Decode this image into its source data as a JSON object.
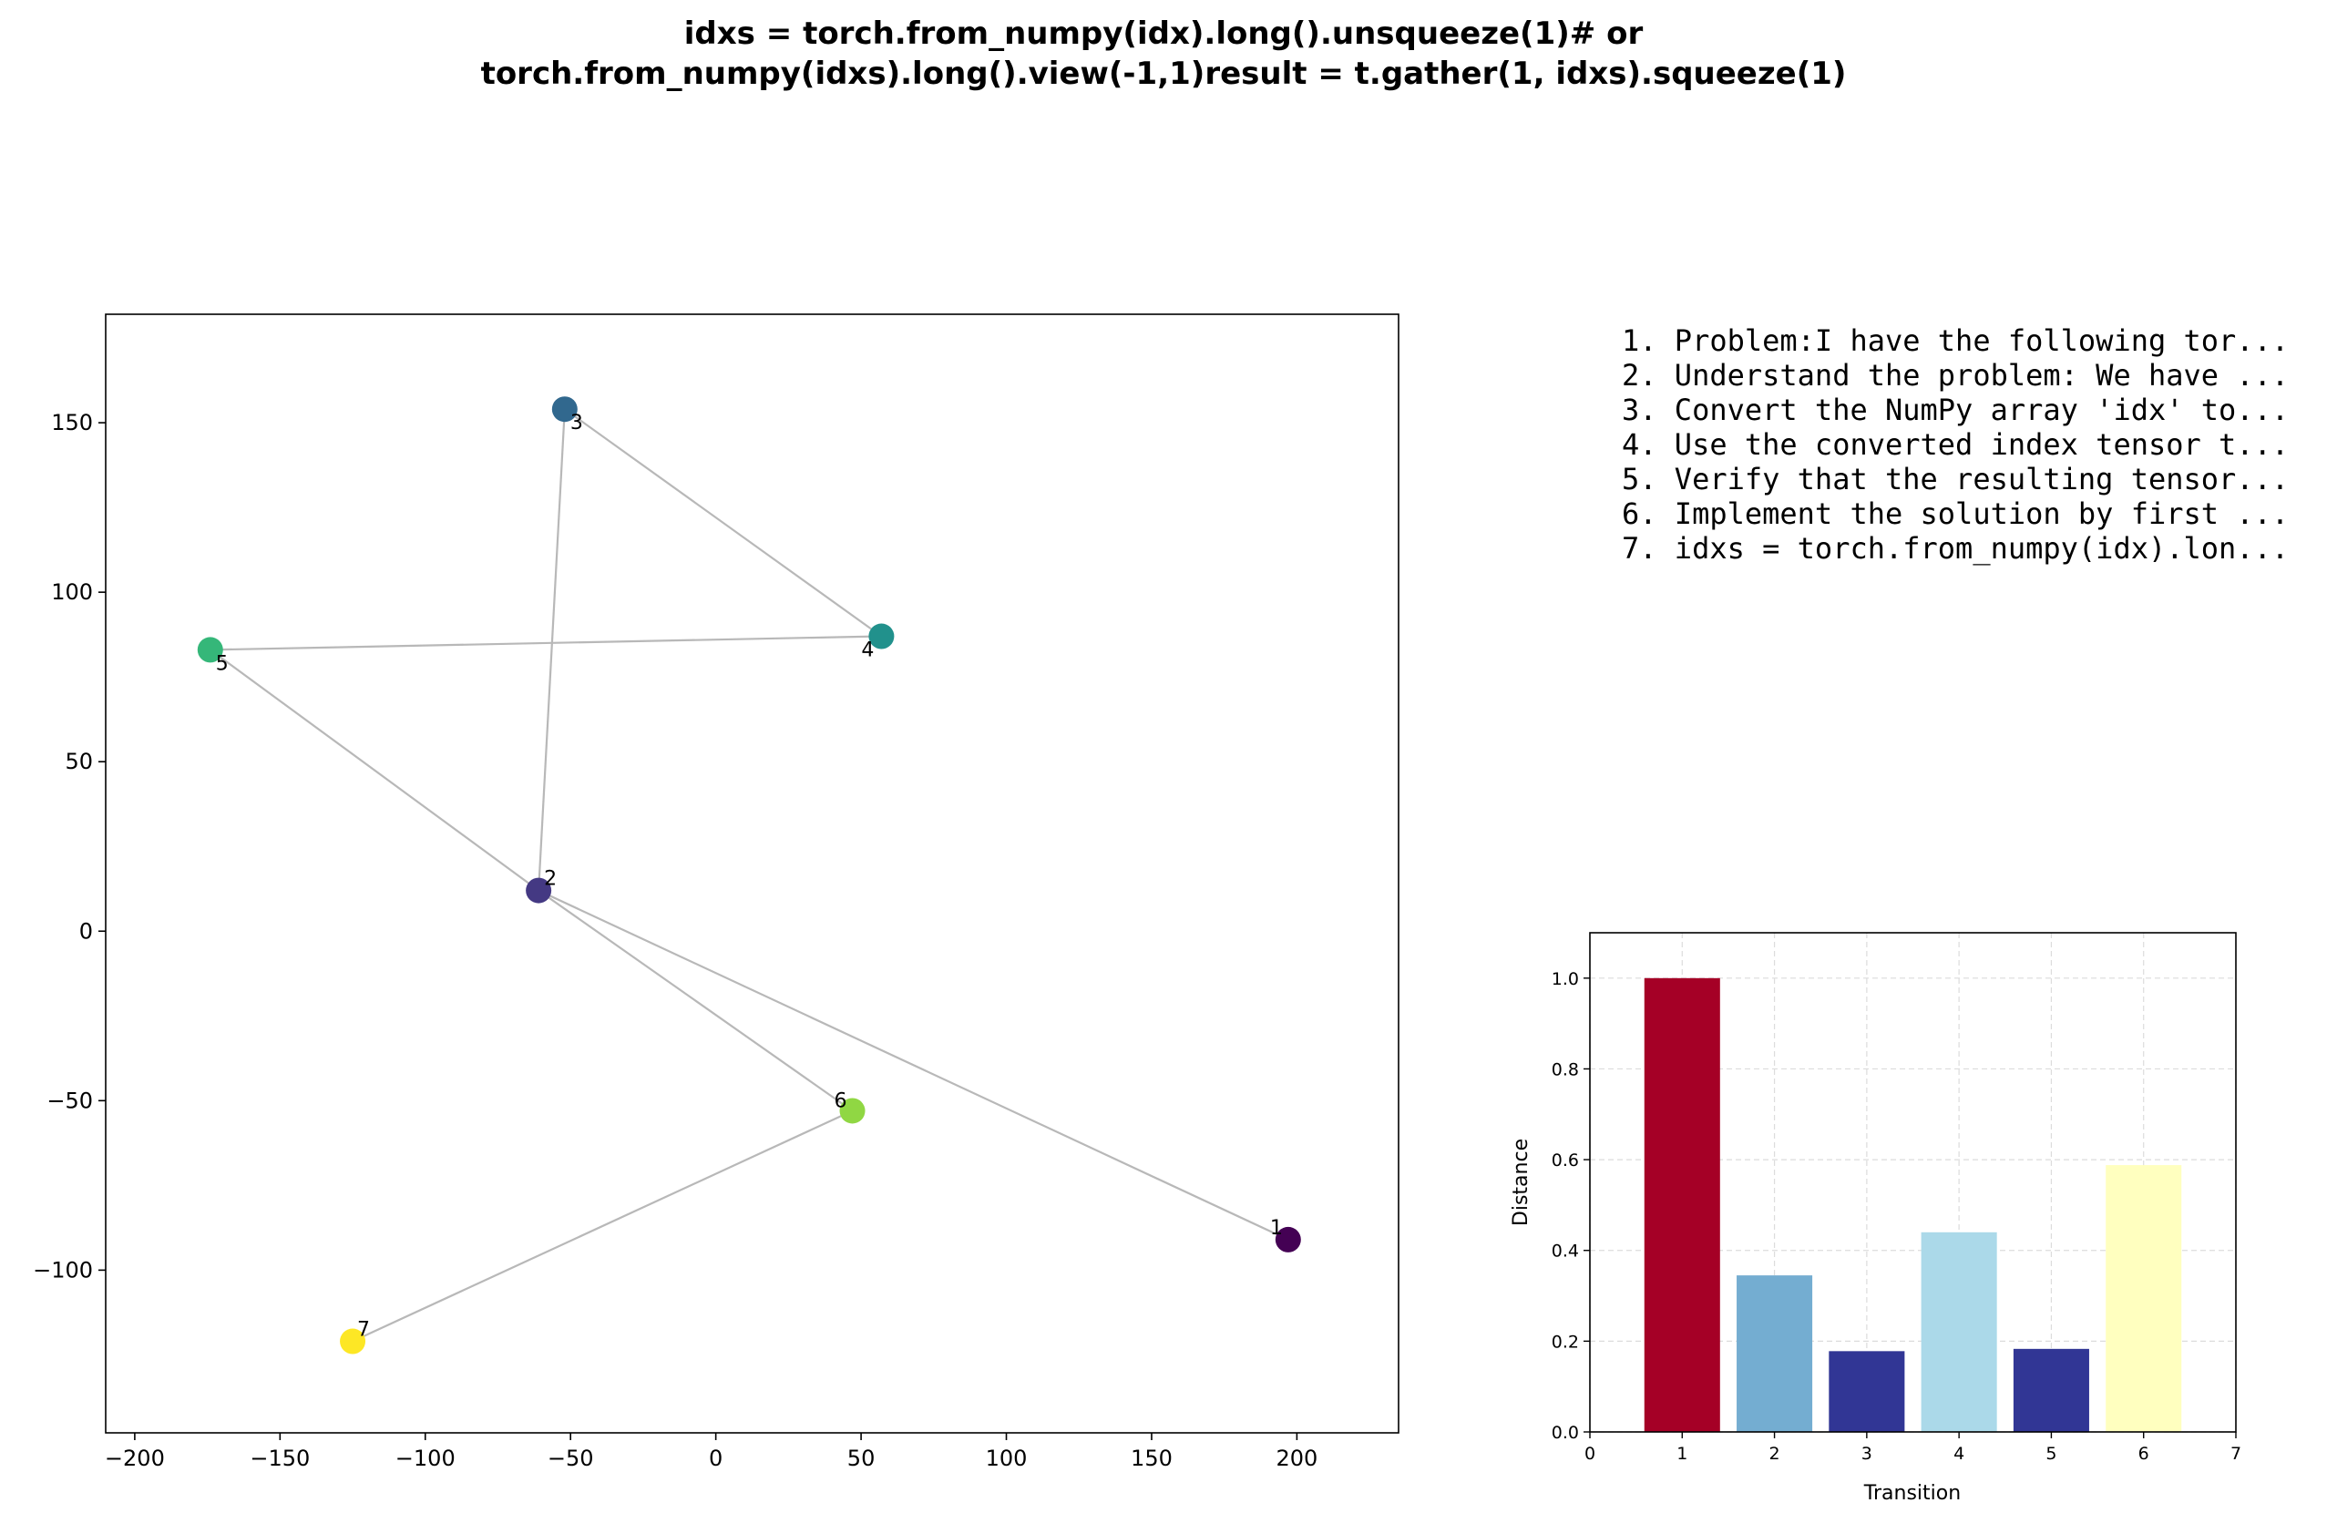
{
  "figure": {
    "title_lines": [
      "idxs = torch.from_numpy(idx).long().unsqueeze(1)# or",
      "torch.from_numpy(idxs).long().view(-1,1)result = t.gather(1, idxs).squeeze(1)"
    ],
    "steps": [
      "1. Problem:I have the following tor...",
      "2. Understand the problem: We have ...",
      "3. Convert the NumPy array 'idx' to...",
      "4. Use the converted index tensor t...",
      "5. Verify that the resulting tensor...",
      "6. Implement the solution by first ...",
      "7. idxs = torch.from_numpy(idx).lon..."
    ]
  },
  "chart_data": [
    {
      "type": "scatter",
      "title": "",
      "xlabel": "",
      "ylabel": "",
      "xlim": [
        -210,
        235
      ],
      "ylim": [
        -148,
        182
      ],
      "xticks": [
        -200,
        -150,
        -100,
        -50,
        0,
        50,
        100,
        150,
        200
      ],
      "yticks": [
        -100,
        -50,
        0,
        50,
        100,
        150
      ],
      "xtick_labels": [
        "−200",
        "−150",
        "−100",
        "−50",
        "0",
        "50",
        "100",
        "150",
        "200"
      ],
      "ytick_labels": [
        "−100",
        "−50",
        "0",
        "50",
        "100",
        "150"
      ],
      "colormap": "viridis",
      "line_color": "#b8b8b8",
      "path_order": [
        1,
        2,
        3,
        4,
        5,
        2,
        6,
        7
      ],
      "points": [
        {
          "label": "1",
          "x": 197,
          "y": -91,
          "color": "#440154"
        },
        {
          "label": "2",
          "x": -61,
          "y": 12,
          "color": "#443983"
        },
        {
          "label": "3",
          "x": -52,
          "y": 154,
          "color": "#31688e"
        },
        {
          "label": "4",
          "x": 57,
          "y": 87,
          "color": "#21918c"
        },
        {
          "label": "5",
          "x": -174,
          "y": 83,
          "color": "#35b779"
        },
        {
          "label": "6",
          "x": 47,
          "y": -53,
          "color": "#90d743"
        },
        {
          "label": "7",
          "x": -125,
          "y": -121,
          "color": "#fde725"
        }
      ]
    },
    {
      "type": "bar",
      "title": "",
      "xlabel": "Transition",
      "ylabel": "Distance",
      "xlim": [
        0,
        7
      ],
      "ylim": [
        0,
        1.1
      ],
      "xticks": [
        0,
        1,
        2,
        3,
        4,
        5,
        6,
        7
      ],
      "yticks": [
        0.0,
        0.2,
        0.4,
        0.6,
        0.8,
        1.0
      ],
      "ytick_labels": [
        "0.0",
        "0.2",
        "0.4",
        "0.6",
        "0.8",
        "1.0"
      ],
      "grid": true,
      "categories": [
        1,
        2,
        3,
        4,
        5,
        6
      ],
      "values": [
        1.0,
        0.345,
        0.178,
        0.44,
        0.183,
        0.588
      ],
      "colors": [
        "#a50026",
        "#74add1",
        "#313695",
        "#abd9e9",
        "#313695",
        "#ffffbf"
      ]
    }
  ]
}
